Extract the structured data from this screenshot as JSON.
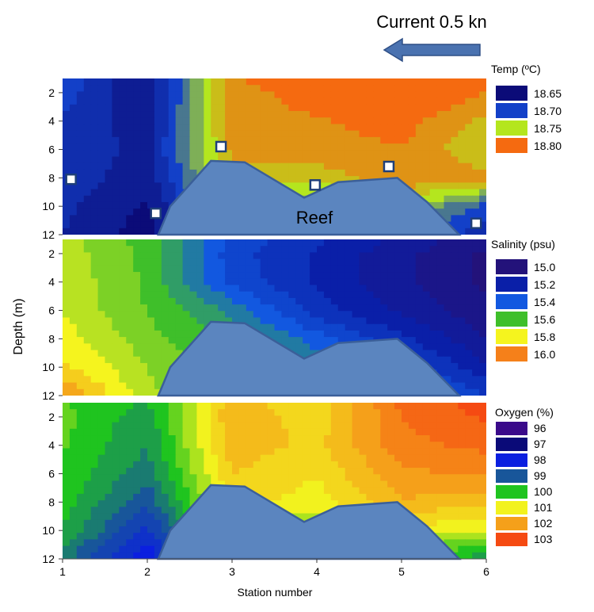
{
  "current": {
    "label": "Current 0.5 kn",
    "arrow_color": "#4a72b0"
  },
  "reef_label": "Reef",
  "reef_color": "#5b85bf",
  "reef_edge_color": "#3b5f99",
  "xlabel": "Station number",
  "ylabel": "Depth (m)",
  "chart_data": [
    {
      "type": "heatmap",
      "name": "temperature",
      "legend_title": "Temp (ºC)",
      "legend": [
        {
          "label": "18.65",
          "color": "#0b0b78"
        },
        {
          "label": "18.70",
          "color": "#1340c8"
        },
        {
          "label": "18.75",
          "color": "#b4e61e"
        },
        {
          "label": "18.80",
          "color": "#f56a10"
        }
      ],
      "x": [
        1,
        2,
        3,
        4,
        5,
        6
      ],
      "xlim": [
        1,
        6
      ],
      "y": [
        1,
        2,
        4,
        6,
        8,
        10,
        12
      ],
      "ylim": [
        1,
        12
      ],
      "yticks": [
        "2",
        "4",
        "6",
        "8",
        "10",
        "12"
      ],
      "z": [
        [
          18.7,
          18.66,
          18.79,
          18.805,
          18.815,
          18.8
        ],
        [
          18.7,
          18.66,
          18.785,
          18.8,
          18.815,
          18.79
        ],
        [
          18.69,
          18.665,
          18.785,
          18.79,
          18.8,
          18.77
        ],
        [
          18.685,
          18.67,
          18.78,
          18.785,
          18.79,
          18.76
        ],
        [
          18.685,
          18.665,
          18.77,
          18.765,
          18.79,
          18.78
        ],
        [
          18.68,
          18.655,
          18.745,
          18.73,
          18.75,
          18.7
        ],
        [
          18.675,
          18.65,
          18.72,
          18.71,
          18.7,
          18.685
        ]
      ],
      "sample_points": [
        {
          "station": 1.1,
          "depth": 8.1
        },
        {
          "station": 2.1,
          "depth": 10.5
        },
        {
          "station": 2.87,
          "depth": 5.8
        },
        {
          "station": 3.98,
          "depth": 8.5
        },
        {
          "station": 4.85,
          "depth": 7.2
        },
        {
          "station": 5.88,
          "depth": 11.2
        }
      ]
    },
    {
      "type": "heatmap",
      "name": "salinity",
      "legend_title": "Salinity (psu)",
      "legend": [
        {
          "label": "15.0",
          "color": "#23127a"
        },
        {
          "label": "15.2",
          "color": "#0a1fa8"
        },
        {
          "label": "15.4",
          "color": "#1258e0"
        },
        {
          "label": "15.6",
          "color": "#3fbf2a"
        },
        {
          "label": "15.8",
          "color": "#f5f41e"
        },
        {
          "label": "16.0",
          "color": "#f5801a"
        }
      ],
      "x": [
        1,
        2,
        3,
        4,
        5,
        6
      ],
      "xlim": [
        1,
        6
      ],
      "y": [
        1,
        2,
        4,
        6,
        8,
        10,
        12
      ],
      "ylim": [
        1,
        12
      ],
      "yticks": [
        "2",
        "4",
        "6",
        "8",
        "10",
        "12"
      ],
      "z": [
        [
          15.73,
          15.6,
          15.35,
          15.25,
          15.15,
          15.05
        ],
        [
          15.74,
          15.61,
          15.33,
          15.22,
          15.12,
          15.02
        ],
        [
          15.75,
          15.62,
          15.35,
          15.22,
          15.12,
          15.02
        ],
        [
          15.76,
          15.63,
          15.48,
          15.26,
          15.15,
          15.05
        ],
        [
          15.8,
          15.66,
          15.55,
          15.4,
          15.25,
          15.1
        ],
        [
          15.85,
          15.7,
          15.58,
          15.48,
          15.35,
          15.18
        ],
        [
          15.98,
          15.72,
          15.6,
          15.55,
          15.45,
          15.3
        ]
      ]
    },
    {
      "type": "heatmap",
      "name": "oxygen",
      "legend_title": "Oxygen (%)",
      "legend": [
        {
          "label": "96",
          "color": "#3a0a8a"
        },
        {
          "label": "97",
          "color": "#0a0a78"
        },
        {
          "label": "98",
          "color": "#0b1fe0"
        },
        {
          "label": "99",
          "color": "#18569a"
        },
        {
          "label": "100",
          "color": "#1fc41f"
        },
        {
          "label": "101",
          "color": "#f2f21e"
        },
        {
          "label": "102",
          "color": "#f5a01a"
        },
        {
          "label": "103",
          "color": "#f54a12"
        }
      ],
      "x": [
        1,
        2,
        3,
        4,
        5,
        6
      ],
      "xlim": [
        1,
        6
      ],
      "xticks": [
        "1",
        "2",
        "3",
        "4",
        "5",
        "6"
      ],
      "y": [
        1,
        2,
        4,
        6,
        8,
        10,
        12
      ],
      "ylim": [
        1,
        12
      ],
      "yticks": [
        "2",
        "4",
        "6",
        "8",
        "10",
        "12"
      ],
      "z": [
        [
          100.2,
          99.8,
          101.7,
          101.2,
          102.6,
          103.0
        ],
        [
          100.3,
          99.6,
          101.8,
          101.3,
          102.5,
          102.9
        ],
        [
          100.2,
          99.5,
          101.7,
          101.4,
          102.4,
          102.6
        ],
        [
          100.1,
          99.3,
          101.5,
          101.2,
          102.1,
          102.2
        ],
        [
          100.0,
          98.9,
          101.3,
          101.0,
          101.8,
          101.6
        ],
        [
          99.8,
          98.4,
          100.8,
          100.4,
          101.1,
          100.8
        ],
        [
          99.3,
          97.8,
          100.2,
          99.8,
          100.2,
          99.6
        ]
      ]
    }
  ],
  "reef_outline": [
    {
      "station": 2.13,
      "depth": 12
    },
    {
      "station": 2.27,
      "depth": 10
    },
    {
      "station": 2.75,
      "depth": 6.8
    },
    {
      "station": 3.15,
      "depth": 6.9
    },
    {
      "station": 3.85,
      "depth": 9.4
    },
    {
      "station": 4.25,
      "depth": 8.3
    },
    {
      "station": 4.95,
      "depth": 8.0
    },
    {
      "station": 5.3,
      "depth": 9.7
    },
    {
      "station": 5.68,
      "depth": 12
    }
  ]
}
